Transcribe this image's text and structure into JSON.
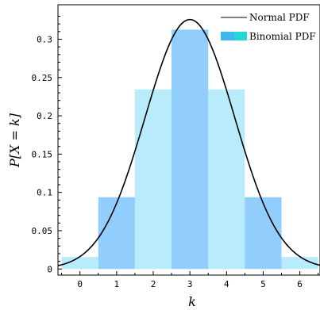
{
  "chart_data": {
    "type": "bar",
    "x": [
      0,
      1,
      2,
      3,
      4,
      5,
      6
    ],
    "series": [
      {
        "name": "Binomial PDF",
        "values": [
          0.015625,
          0.09375,
          0.234375,
          0.3125,
          0.234375,
          0.09375,
          0.015625
        ]
      },
      {
        "name": "Normal PDF",
        "type": "line",
        "mean": 3,
        "sd": 1.2247,
        "peak": 0.3257
      }
    ],
    "xlabel": "k",
    "ylabel": "P[X = k]",
    "xlim": [
      -0.6,
      6.55
    ],
    "ylim": [
      -0.008,
      0.345
    ],
    "x_ticks": [
      "0",
      "1",
      "2",
      "3",
      "4",
      "5",
      "6"
    ],
    "y_ticks": [
      "0",
      "0.05",
      "0.1",
      "0.15",
      "0.2",
      "0.25",
      "0.3"
    ],
    "legend": {
      "placement": "top-right",
      "entries": [
        "Normal PDF",
        "Binomial PDF"
      ]
    },
    "grid": false,
    "colors": {
      "bar_light": "#b8ecfd",
      "bar_dark": "#91cdfd",
      "legend_swatch_dark": "#3db8ef",
      "legend_swatch_light": "#24d6d6",
      "curve": "#000000"
    }
  }
}
